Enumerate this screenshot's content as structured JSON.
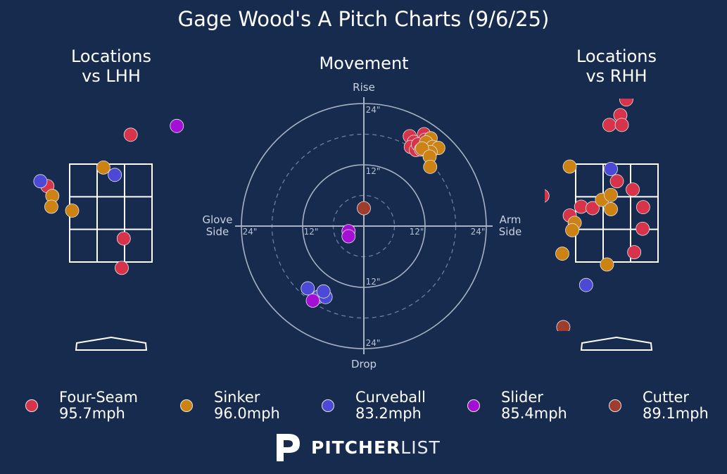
{
  "title": "Gage Wood's A Pitch Charts (9/6/25)",
  "panels": {
    "lhh_title": "Locations\nvs LHH",
    "movement_title": "Movement",
    "rhh_title": "Locations\nvs RHH"
  },
  "movement_labels": {
    "top": "Rise",
    "bottom": "Drop",
    "left": "Glove\nSide",
    "right": "Arm\nSide",
    "ring_label": "12\"",
    "outer_label": "24\""
  },
  "colors": {
    "background": "#162b4d",
    "Four-Seam": "#d7334b",
    "Sinker": "#cc8314",
    "Curveball": "#4b49d6",
    "Slider": "#a40fd6",
    "Cutter": "#9e3c2e"
  },
  "legend": [
    {
      "name": "Four-Seam",
      "speed": "95.7mph"
    },
    {
      "name": "Sinker",
      "speed": "96.0mph"
    },
    {
      "name": "Curveball",
      "speed": "83.2mph"
    },
    {
      "name": "Slider",
      "speed": "85.4mph"
    },
    {
      "name": "Cutter",
      "speed": "89.1mph"
    }
  ],
  "brand": {
    "bold": "PITCHER",
    "light": "LIST"
  },
  "chart_data": [
    {
      "type": "scatter",
      "title": "Locations vs LHH",
      "xlim": [
        -1.5,
        1.5
      ],
      "ylim": [
        0,
        5
      ],
      "strike_zone": {
        "x": [
          -0.83,
          0.83
        ],
        "z": [
          1.5,
          3.5
        ]
      },
      "points": [
        {
          "pitch": "Four-Seam",
          "x": 0.4,
          "z": 4.1
        },
        {
          "pitch": "Four-Seam",
          "x": -1.28,
          "z": 3.05
        },
        {
          "pitch": "Four-Seam",
          "x": 0.26,
          "z": 1.98
        },
        {
          "pitch": "Four-Seam",
          "x": 0.22,
          "z": 1.38
        },
        {
          "pitch": "Sinker",
          "x": -0.15,
          "z": 3.43
        },
        {
          "pitch": "Sinker",
          "x": -1.18,
          "z": 2.85
        },
        {
          "pitch": "Sinker",
          "x": -1.2,
          "z": 2.63
        },
        {
          "pitch": "Sinker",
          "x": -0.78,
          "z": 2.55
        },
        {
          "pitch": "Curveball",
          "x": 0.08,
          "z": 3.28
        },
        {
          "pitch": "Curveball",
          "x": -1.42,
          "z": 3.15
        },
        {
          "pitch": "Slider",
          "x": 1.33,
          "z": 4.28
        }
      ]
    },
    {
      "type": "scatter",
      "title": "Movement",
      "xlim": [
        -24,
        24
      ],
      "ylim": [
        -24,
        24
      ],
      "xlabel": "Glove Side / Arm Side",
      "ylabel": "Drop / Rise",
      "points": [
        {
          "pitch": "Four-Seam",
          "x": 9.0,
          "y": 17.6
        },
        {
          "pitch": "Four-Seam",
          "x": 9.8,
          "y": 16.5
        },
        {
          "pitch": "Four-Seam",
          "x": 11.8,
          "y": 18.0
        },
        {
          "pitch": "Four-Seam",
          "x": 9.2,
          "y": 15.5
        },
        {
          "pitch": "Four-Seam",
          "x": 10.2,
          "y": 14.9
        },
        {
          "pitch": "Four-Seam",
          "x": 12.0,
          "y": 16.9
        },
        {
          "pitch": "Four-Seam",
          "x": 10.6,
          "y": 16.0
        },
        {
          "pitch": "Four-Seam",
          "x": 11.2,
          "y": 15.0
        },
        {
          "pitch": "Sinker",
          "x": 13.1,
          "y": 17.2
        },
        {
          "pitch": "Sinker",
          "x": 12.2,
          "y": 16.4
        },
        {
          "pitch": "Sinker",
          "x": 13.5,
          "y": 15.5
        },
        {
          "pitch": "Sinker",
          "x": 14.6,
          "y": 15.3
        },
        {
          "pitch": "Sinker",
          "x": 13.1,
          "y": 14.5
        },
        {
          "pitch": "Sinker",
          "x": 11.4,
          "y": 15.2
        },
        {
          "pitch": "Sinker",
          "x": 12.9,
          "y": 13.6
        },
        {
          "pitch": "Sinker",
          "x": 13.0,
          "y": 11.6
        },
        {
          "pitch": "Curveball",
          "x": -11.0,
          "y": -12.2
        },
        {
          "pitch": "Curveball",
          "x": -8.8,
          "y": -13.8
        },
        {
          "pitch": "Curveball",
          "x": -7.5,
          "y": -13.9
        },
        {
          "pitch": "Curveball",
          "x": -7.9,
          "y": -12.8
        },
        {
          "pitch": "Slider",
          "x": -3.0,
          "y": -1.0
        },
        {
          "pitch": "Slider",
          "x": -3.0,
          "y": -2.0
        },
        {
          "pitch": "Slider",
          "x": -10.0,
          "y": -14.6
        },
        {
          "pitch": "Cutter",
          "x": 0.0,
          "y": 3.5
        }
      ]
    },
    {
      "type": "scatter",
      "title": "Locations vs RHH",
      "xlim": [
        -1.5,
        1.5
      ],
      "ylim": [
        0,
        5
      ],
      "strike_zone": {
        "x": [
          -0.83,
          0.83
        ],
        "z": [
          1.5,
          3.5
        ]
      },
      "points": [
        {
          "pitch": "Four-Seam",
          "x": 0.19,
          "z": 4.82
        },
        {
          "pitch": "Four-Seam",
          "x": -0.15,
          "z": 4.3
        },
        {
          "pitch": "Four-Seam",
          "x": 0.07,
          "z": 4.5
        },
        {
          "pitch": "Four-Seam",
          "x": 0.1,
          "z": 4.3
        },
        {
          "pitch": "Four-Seam",
          "x": 0.0,
          "z": 3.15
        },
        {
          "pitch": "Four-Seam",
          "x": 0.32,
          "z": 2.98
        },
        {
          "pitch": "Four-Seam",
          "x": -1.5,
          "z": 2.85
        },
        {
          "pitch": "Four-Seam",
          "x": 0.53,
          "z": 2.62
        },
        {
          "pitch": "Four-Seam",
          "x": -0.72,
          "z": 2.63
        },
        {
          "pitch": "Four-Seam",
          "x": -0.49,
          "z": 2.6
        },
        {
          "pitch": "Four-Seam",
          "x": -0.95,
          "z": 2.45
        },
        {
          "pitch": "Four-Seam",
          "x": 0.52,
          "z": 2.18
        },
        {
          "pitch": "Four-Seam",
          "x": 0.35,
          "z": 1.7
        },
        {
          "pitch": "Sinker",
          "x": -0.95,
          "z": 3.45
        },
        {
          "pitch": "Sinker",
          "x": -0.3,
          "z": 2.77
        },
        {
          "pitch": "Sinker",
          "x": -0.12,
          "z": 2.87
        },
        {
          "pitch": "Sinker",
          "x": -0.12,
          "z": 2.58
        },
        {
          "pitch": "Sinker",
          "x": -0.85,
          "z": 2.3
        },
        {
          "pitch": "Sinker",
          "x": -0.9,
          "z": 2.15
        },
        {
          "pitch": "Sinker",
          "x": -1.1,
          "z": 1.67
        },
        {
          "pitch": "Sinker",
          "x": -0.2,
          "z": 1.45
        },
        {
          "pitch": "Curveball",
          "x": -0.12,
          "z": 3.4
        },
        {
          "pitch": "Curveball",
          "x": -0.62,
          "z": 1.03
        },
        {
          "pitch": "Slider",
          "x": -1.05,
          "z": -0.06
        },
        {
          "pitch": "Slider",
          "x": -1.06,
          "z": -0.52
        },
        {
          "pitch": "Cutter",
          "x": -1.08,
          "z": 0.17
        }
      ]
    }
  ]
}
